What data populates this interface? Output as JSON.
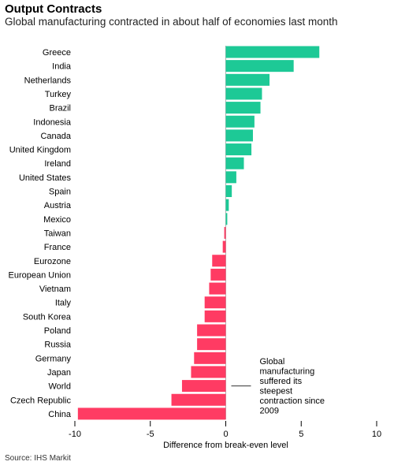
{
  "title": "Output Contracts",
  "subtitle": "Global manufacturing contracted in about half of economies last month",
  "source": "Source: IHS Markit",
  "colors": {
    "positive": "#1dc996",
    "negative": "#ff3b63",
    "zero_line": "#b0b0b0",
    "axis": "#000000"
  },
  "chart_data": {
    "type": "bar",
    "orientation": "horizontal",
    "categories": [
      "Greece",
      "India",
      "Netherlands",
      "Turkey",
      "Brazil",
      "Indonesia",
      "Canada",
      "United Kingdom",
      "Ireland",
      "United States",
      "Spain",
      "Austria",
      "Mexico",
      "Taiwan",
      "France",
      "Eurozone",
      "European Union",
      "Vietnam",
      "Italy",
      "South Korea",
      "Poland",
      "Russia",
      "Germany",
      "Japan",
      "World",
      "Czech Republic",
      "China"
    ],
    "values": [
      6.2,
      4.5,
      2.9,
      2.4,
      2.3,
      1.9,
      1.8,
      1.7,
      1.2,
      0.7,
      0.4,
      0.2,
      0.1,
      -0.1,
      -0.2,
      -0.9,
      -1.0,
      -1.1,
      -1.4,
      -1.4,
      -1.9,
      -1.9,
      -2.1,
      -2.3,
      -2.9,
      -3.6,
      -9.8
    ],
    "xlabel": "Difference from break-even level",
    "xlim": [
      -10,
      10
    ],
    "xticks": [
      -10,
      -5,
      0,
      5,
      10
    ],
    "xtick_labels": [
      "-10",
      "-5",
      "0",
      "5",
      "10"
    ],
    "annotation": {
      "target": "World",
      "lines": [
        "Global",
        "manufacturing",
        "suffered its",
        "steepest",
        "contraction since",
        "2009"
      ]
    }
  }
}
